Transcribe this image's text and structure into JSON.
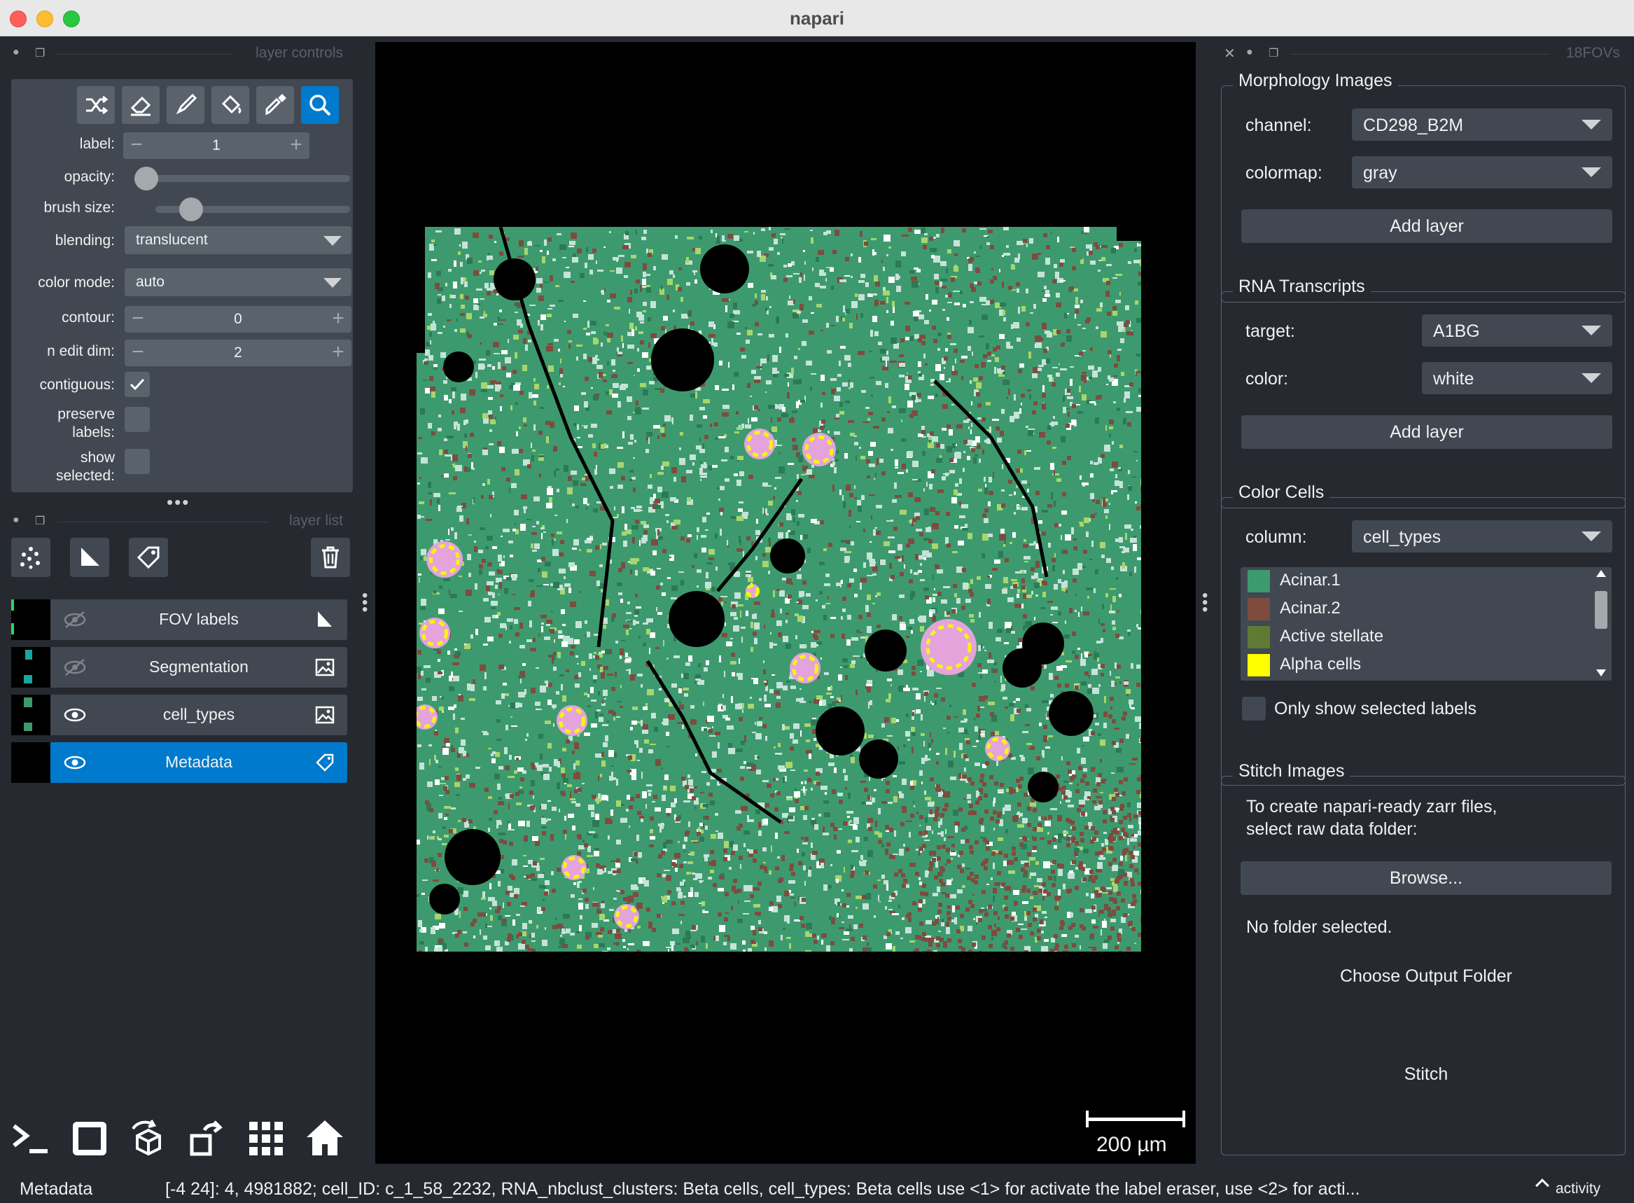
{
  "window": {
    "title": "napari"
  },
  "layer_controls": {
    "header": "layer controls",
    "tools": [
      "shuffle-colors",
      "eraser",
      "paintbrush",
      "fill-bucket",
      "color-picker",
      "zoom"
    ],
    "active_tool": "zoom",
    "label": {
      "label": "label:",
      "value": "1"
    },
    "opacity": {
      "label": "opacity:",
      "value": 0.0
    },
    "brush_size": {
      "label": "brush size:",
      "value": 0.2
    },
    "blending": {
      "label": "blending:",
      "value": "translucent"
    },
    "color_mode": {
      "label": "color mode:",
      "value": "auto"
    },
    "contour": {
      "label": "contour:",
      "value": "0"
    },
    "n_edit_dim": {
      "label": "n edit dim:",
      "value": "2"
    },
    "contiguous": {
      "label": "contiguous:",
      "checked": true
    },
    "preserve_labels": {
      "label_line1": "preserve",
      "label_line2": "labels:",
      "checked": false
    },
    "show_selected": {
      "label_line1": "show",
      "label_line2": "selected:",
      "checked": false
    }
  },
  "layer_list": {
    "header": "layer list",
    "layers": [
      {
        "name": "FOV labels",
        "visible": false,
        "type_icon": "shapes-icon",
        "selected": false
      },
      {
        "name": "Segmentation",
        "visible": false,
        "type_icon": "image-icon",
        "selected": false
      },
      {
        "name": "cell_types",
        "visible": true,
        "type_icon": "image-icon",
        "selected": false
      },
      {
        "name": "Metadata",
        "visible": true,
        "type_icon": "label-icon",
        "selected": true
      }
    ]
  },
  "viewer": {
    "scale_bar": "200 µm",
    "colors": {
      "acinar1": "#3d9a6e",
      "acinar2": "#7e4c3f",
      "light": "#c6e3d9",
      "pink": "#e5a3dc",
      "yellow": "#f7f50c",
      "lime": "#a6d66d"
    }
  },
  "right_panel": {
    "header": "18FOVs",
    "morphology": {
      "title": "Morphology Images",
      "channel_label": "channel:",
      "channel_value": "CD298_B2M",
      "colormap_label": "colormap:",
      "colormap_value": "gray",
      "add_button": "Add layer"
    },
    "rna": {
      "title": "RNA Transcripts",
      "target_label": "target:",
      "target_value": "A1BG",
      "color_label": "color:",
      "color_value": "white",
      "add_button": "Add layer"
    },
    "color_cells": {
      "title": "Color Cells",
      "column_label": "column:",
      "column_value": "cell_types",
      "items": [
        {
          "name": "Acinar.1",
          "color": "#3d9a6e"
        },
        {
          "name": "Acinar.2",
          "color": "#7e4c3f"
        },
        {
          "name": "Active stellate",
          "color": "#5e7a34"
        },
        {
          "name": "Alpha cells",
          "color": "#ffff00"
        }
      ],
      "only_show_label": "Only show selected labels"
    },
    "stitch": {
      "title": "Stitch Images",
      "desc_line1": "To create napari-ready zarr files,",
      "desc_line2": "select raw data folder:",
      "browse_button": "Browse...",
      "no_folder": "No folder selected.",
      "output_button": "Choose Output Folder",
      "stitch_button": "Stitch"
    }
  },
  "status": {
    "layer": "Metadata",
    "message": "[-4 24]: 4, 4981882; cell_ID: c_1_58_2232, RNA_nbclust_clusters: Beta cells, cell_types: Beta cells  use <1> for activate the label eraser, use <2> for acti...",
    "activity": "activity"
  },
  "bottom_buttons": [
    "console-icon",
    "ndisplay-icon",
    "roll-icon",
    "transpose-icon",
    "grid-icon",
    "home-icon"
  ]
}
